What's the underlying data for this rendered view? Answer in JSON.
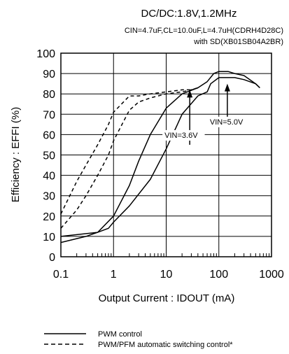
{
  "chart_data": {
    "type": "line",
    "title": "DC/DC:1.8V,1.2MHz",
    "subtitle_lines": [
      "CIN=4.7uF,CL=10.0uF,L=4.7uH(CDRH4D28C)",
      "with SD(XB01SB04A2BR)"
    ],
    "xlabel": "Output Current : IDOUT (mA)",
    "ylabel": "Efficiency : EFFI (%)",
    "x_scale": "log",
    "xlim": [
      0.1,
      1000
    ],
    "ylim": [
      0,
      100
    ],
    "x_ticks": [
      0.1,
      1,
      10,
      100,
      1000
    ],
    "x_tick_labels": [
      "0.1",
      "1",
      "10",
      "100",
      "1000"
    ],
    "y_ticks": [
      0,
      10,
      20,
      30,
      40,
      50,
      60,
      70,
      80,
      90,
      100
    ],
    "y_tick_labels": [
      "0",
      "10",
      "20",
      "30",
      "40",
      "50",
      "60",
      "70",
      "80",
      "90",
      "100"
    ],
    "grid": true,
    "annotations": [
      {
        "text": "VIN=3.6V",
        "arrow_x": 28,
        "arrow_from_y": 55,
        "arrow_to_y": 82
      },
      {
        "text": "VIN=5.0V",
        "arrow_x": 145,
        "arrow_from_y": 65,
        "arrow_to_y": 85
      }
    ],
    "legend": {
      "placement": "bottom",
      "entries": [
        {
          "label": "PWM control",
          "style": "solid"
        },
        {
          "label": "PWM/PFM automatic switching control*",
          "style": "dashed"
        }
      ]
    },
    "series": [
      {
        "style": "solid",
        "x": [
          0.1,
          0.5,
          1,
          2,
          3,
          5,
          10,
          20,
          40,
          60,
          80,
          100,
          150,
          200,
          300,
          500,
          600
        ],
        "y": [
          10,
          12,
          20,
          35,
          47,
          60,
          73,
          80,
          83,
          86,
          90,
          91,
          91,
          90,
          89,
          85,
          83
        ]
      },
      {
        "style": "solid",
        "x": [
          0.1,
          0.3,
          0.5,
          0.8,
          1,
          2,
          5,
          10,
          20,
          40,
          60,
          70,
          100,
          150,
          200,
          300,
          500,
          600
        ],
        "y": [
          7,
          10,
          12,
          14,
          17,
          25,
          38,
          53,
          70,
          79,
          81,
          85,
          88,
          88,
          88,
          87,
          85,
          83
        ]
      },
      {
        "style": "dashed",
        "x": [
          0.1,
          0.2,
          0.3,
          0.5,
          0.8,
          1,
          2,
          3,
          5,
          10,
          20,
          30,
          40
        ],
        "y": [
          21,
          37,
          45,
          55,
          65,
          71,
          79,
          79,
          80,
          81,
          82,
          82,
          83
        ]
      },
      {
        "style": "dashed",
        "x": [
          0.1,
          0.2,
          0.3,
          0.5,
          0.8,
          1,
          2,
          3,
          5,
          10,
          20,
          30,
          40
        ],
        "y": [
          14,
          23,
          30,
          40,
          50,
          57,
          72,
          76,
          78,
          80,
          81,
          82,
          83
        ]
      }
    ]
  }
}
